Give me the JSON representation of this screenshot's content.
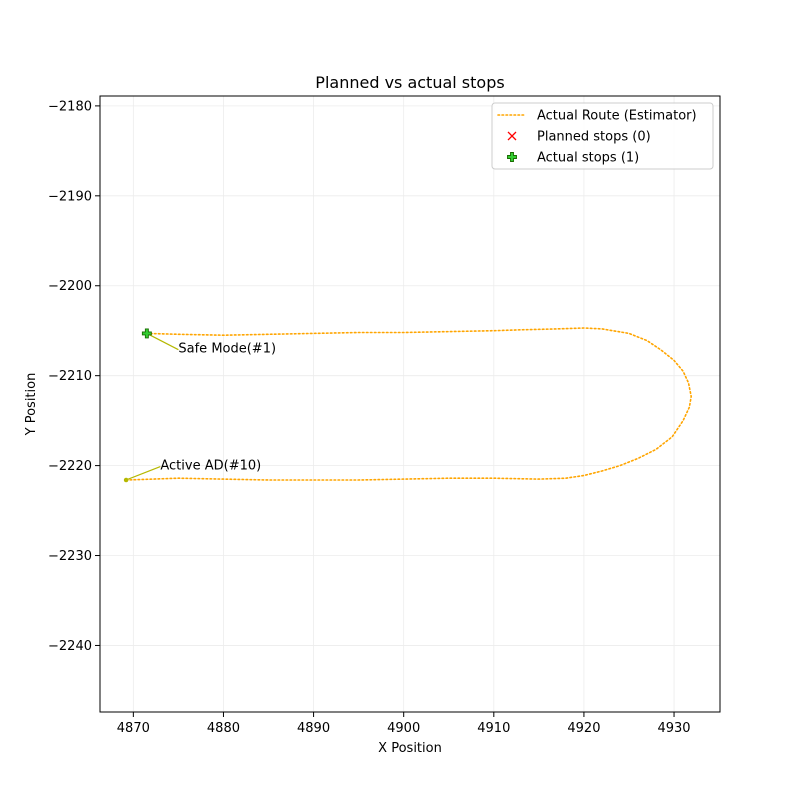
{
  "chart_data": {
    "type": "line",
    "title": "Planned vs actual stops",
    "xlabel": "X Position",
    "ylabel": "Y Position",
    "xlim": [
      4866.3,
      4935.1
    ],
    "ylim": [
      -2247.4,
      -2178.9
    ],
    "xticks": [
      4870,
      4880,
      4890,
      4900,
      4910,
      4920,
      4930
    ],
    "yticks": [
      -2180,
      -2190,
      -2200,
      -2210,
      -2220,
      -2230,
      -2240
    ],
    "grid": true,
    "legend_position": "top-right",
    "legend": [
      {
        "label": "Actual Route (Estimator)",
        "marker": "dotted-line",
        "color": "#ffa500"
      },
      {
        "label": "Planned stops (0)",
        "marker": "x",
        "color": "#ff0000"
      },
      {
        "label": "Actual stops (1)",
        "marker": "plus",
        "color": "#32cd32"
      }
    ],
    "series": [
      {
        "name": "Actual Route (Estimator)",
        "color": "#ffa500",
        "style": "dotted",
        "points": [
          [
            4869.2,
            -2221.6
          ],
          [
            4875.0,
            -2221.4
          ],
          [
            4880.0,
            -2221.5
          ],
          [
            4885.0,
            -2221.6
          ],
          [
            4890.0,
            -2221.6
          ],
          [
            4895.0,
            -2221.6
          ],
          [
            4900.0,
            -2221.5
          ],
          [
            4905.0,
            -2221.4
          ],
          [
            4910.0,
            -2221.4
          ],
          [
            4915.0,
            -2221.5
          ],
          [
            4918.0,
            -2221.4
          ],
          [
            4920.0,
            -2221.1
          ],
          [
            4922.0,
            -2220.6
          ],
          [
            4924.0,
            -2220.0
          ],
          [
            4926.0,
            -2219.2
          ],
          [
            4928.0,
            -2218.2
          ],
          [
            4929.8,
            -2216.8
          ],
          [
            4931.0,
            -2215.0
          ],
          [
            4931.7,
            -2213.5
          ],
          [
            4931.9,
            -2212.3
          ],
          [
            4931.6,
            -2210.8
          ],
          [
            4931.0,
            -2209.5
          ],
          [
            4930.0,
            -2208.3
          ],
          [
            4928.5,
            -2207.1
          ],
          [
            4927.0,
            -2206.1
          ],
          [
            4925.0,
            -2205.3
          ],
          [
            4922.0,
            -2204.8
          ],
          [
            4920.0,
            -2204.7
          ],
          [
            4917.0,
            -2204.8
          ],
          [
            4913.0,
            -2204.9
          ],
          [
            4910.0,
            -2205.0
          ],
          [
            4905.0,
            -2205.1
          ],
          [
            4900.0,
            -2205.2
          ],
          [
            4895.0,
            -2205.2
          ],
          [
            4890.0,
            -2205.3
          ],
          [
            4885.0,
            -2205.4
          ],
          [
            4880.0,
            -2205.5
          ],
          [
            4875.0,
            -2205.4
          ],
          [
            4871.5,
            -2205.3
          ]
        ]
      },
      {
        "name": "Planned stops (0)",
        "color": "#ff0000",
        "points": []
      },
      {
        "name": "Actual stops (1)",
        "color": "#32cd32",
        "points": [
          [
            4871.5,
            -2205.3
          ]
        ]
      }
    ],
    "annotations": [
      {
        "text": "Safe Mode(#1)",
        "x": 4871.5,
        "y": -2205.3,
        "tx": 4875.0,
        "ty": -2207.0,
        "color": "#b5b800"
      },
      {
        "text": "Active AD(#10)",
        "x": 4869.2,
        "y": -2221.6,
        "tx": 4873.0,
        "ty": -2220.0,
        "color": "#b5b800"
      }
    ]
  }
}
